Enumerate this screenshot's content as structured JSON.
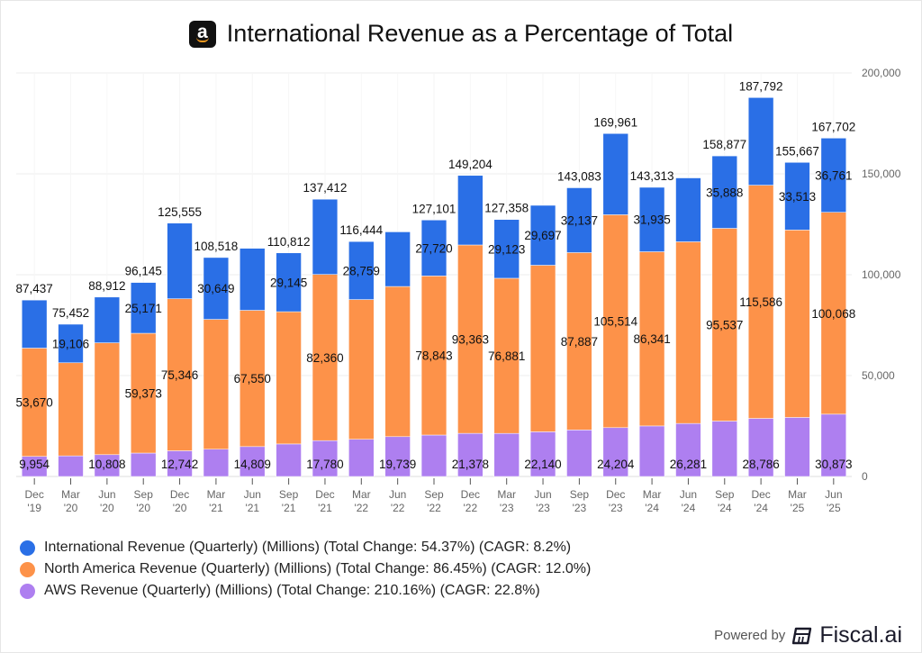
{
  "header": {
    "title": "International Revenue as a Percentage of Total",
    "logo": "amazon-logo"
  },
  "footer": {
    "powered_by": "Powered by",
    "brand": "Fiscal.ai",
    "brand_icon": "fiscal-ai-logo-icon"
  },
  "colors": {
    "international": "#2a6fe6",
    "north_america": "#fd9249",
    "aws": "#ae7ff0",
    "grid": "#eeeeee",
    "axis_text": "#666666",
    "label_text": "#111111"
  },
  "chart_data": {
    "type": "bar",
    "stacked": true,
    "title": "International Revenue as a Percentage of Total",
    "xlabel": "",
    "ylabel": "",
    "ylim": [
      0,
      200000
    ],
    "yticks": [
      0,
      50000,
      100000,
      150000,
      200000
    ],
    "ytick_labels": [
      "0",
      "50,000",
      "100,000",
      "150,000",
      "200,000"
    ],
    "y_axis_side": "right",
    "grid": true,
    "legend_position": "bottom-left",
    "categories": [
      [
        "Dec",
        "'19"
      ],
      [
        "Mar",
        "'20"
      ],
      [
        "Jun",
        "'20"
      ],
      [
        "Sep",
        "'20"
      ],
      [
        "Dec",
        "'20"
      ],
      [
        "Mar",
        "'21"
      ],
      [
        "Jun",
        "'21"
      ],
      [
        "Sep",
        "'21"
      ],
      [
        "Dec",
        "'21"
      ],
      [
        "Mar",
        "'22"
      ],
      [
        "Jun",
        "'22"
      ],
      [
        "Sep",
        "'22"
      ],
      [
        "Dec",
        "'22"
      ],
      [
        "Mar",
        "'23"
      ],
      [
        "Jun",
        "'23"
      ],
      [
        "Sep",
        "'23"
      ],
      [
        "Dec",
        "'23"
      ],
      [
        "Mar",
        "'24"
      ],
      [
        "Jun",
        "'24"
      ],
      [
        "Sep",
        "'24"
      ],
      [
        "Dec",
        "'24"
      ],
      [
        "Mar",
        "'25"
      ],
      [
        "Jun",
        "'25"
      ]
    ],
    "series": [
      {
        "name": "AWS Revenue (Quarterly) (Millions) (Total Change: 210.16%) (CAGR: 22.8%)",
        "key": "aws",
        "values": [
          9954,
          10219,
          10808,
          11601,
          12742,
          13503,
          14809,
          16110,
          17780,
          18441,
          19739,
          20538,
          21378,
          21354,
          22140,
          23059,
          24204,
          25037,
          26281,
          27452,
          28786,
          29267,
          30873
        ],
        "labeled": [
          true,
          false,
          true,
          false,
          true,
          false,
          true,
          false,
          true,
          false,
          true,
          false,
          true,
          false,
          true,
          false,
          true,
          false,
          true,
          false,
          true,
          false,
          true
        ]
      },
      {
        "name": "North America Revenue (Quarterly) (Millions) (Total Change: 86.45%) (CAGR: 12.0%)",
        "key": "north_america",
        "values": [
          53670,
          46127,
          55436,
          59373,
          75346,
          64366,
          67550,
          65557,
          82360,
          69244,
          74430,
          78843,
          93363,
          76881,
          82546,
          87887,
          105514,
          86341,
          90033,
          95537,
          115586,
          92887,
          100068
        ],
        "labeled": [
          true,
          false,
          false,
          true,
          true,
          false,
          true,
          false,
          true,
          false,
          false,
          true,
          true,
          true,
          false,
          true,
          true,
          true,
          false,
          true,
          true,
          false,
          true
        ]
      },
      {
        "name": "International Revenue (Quarterly) (Millions) (Total Change: 54.37%) (CAGR: 8.2%)",
        "key": "international",
        "values": [
          23813,
          19106,
          22668,
          25171,
          37467,
          30649,
          30721,
          29145,
          37272,
          28759,
          27065,
          27720,
          34463,
          29123,
          29697,
          32137,
          40243,
          31935,
          31663,
          35888,
          43420,
          33513,
          36761
        ],
        "labeled": [
          false,
          true,
          false,
          true,
          false,
          true,
          false,
          true,
          false,
          true,
          false,
          true,
          false,
          true,
          true,
          true,
          false,
          true,
          false,
          true,
          false,
          true,
          true
        ]
      }
    ],
    "totals": [
      87437,
      75452,
      88912,
      96145,
      125555,
      108518,
      113080,
      110812,
      137412,
      116444,
      121234,
      127101,
      149204,
      127358,
      134383,
      143083,
      169961,
      143313,
      147977,
      158877,
      187792,
      155667,
      167702
    ],
    "totals_labeled": [
      true,
      true,
      true,
      true,
      true,
      true,
      false,
      true,
      true,
      true,
      false,
      true,
      true,
      true,
      false,
      true,
      true,
      true,
      false,
      true,
      true,
      true,
      true
    ]
  },
  "legend": [
    {
      "label": "International Revenue (Quarterly) (Millions) (Total Change: 54.37%) (CAGR: 8.2%)",
      "color": "#2a6fe6"
    },
    {
      "label": "North America Revenue (Quarterly) (Millions) (Total Change: 86.45%) (CAGR: 12.0%)",
      "color": "#fd9249"
    },
    {
      "label": "AWS Revenue (Quarterly) (Millions) (Total Change: 210.16%) (CAGR: 22.8%)",
      "color": "#ae7ff0"
    }
  ]
}
